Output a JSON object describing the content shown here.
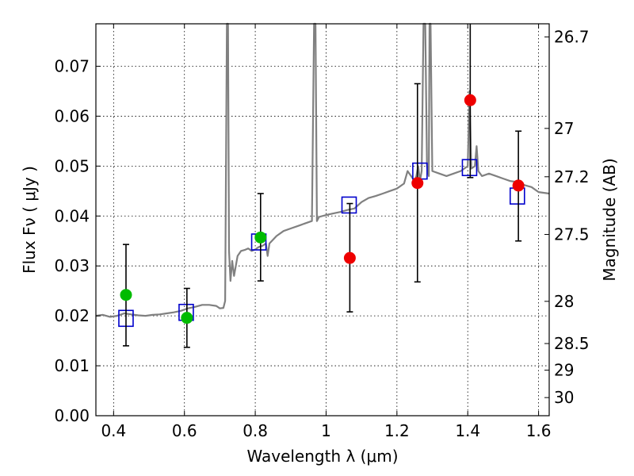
{
  "chart_data": {
    "type": "scatter",
    "xlabel": "Wavelength  λ (μm)",
    "ylabel": "Flux  Fν  ( μJy )",
    "y2label": "Magnitude (AB)",
    "xlim": [
      0.35,
      1.63
    ],
    "ylim": [
      0.0,
      0.0785
    ],
    "grid": true,
    "x_ticks": [
      {
        "value": 0.4,
        "label": "0.4"
      },
      {
        "value": 0.6,
        "label": "0.6"
      },
      {
        "value": 0.8,
        "label": "0.8"
      },
      {
        "value": 1.0,
        "label": "1"
      },
      {
        "value": 1.2,
        "label": "1.2"
      },
      {
        "value": 1.4,
        "label": "1.4"
      },
      {
        "value": 1.6,
        "label": "1.6"
      }
    ],
    "y_ticks": [
      {
        "value": 0.0,
        "label": "0.00"
      },
      {
        "value": 0.01,
        "label": "0.01"
      },
      {
        "value": 0.02,
        "label": "0.02"
      },
      {
        "value": 0.03,
        "label": "0.03"
      },
      {
        "value": 0.04,
        "label": "0.04"
      },
      {
        "value": 0.05,
        "label": "0.05"
      },
      {
        "value": 0.06,
        "label": "0.06"
      },
      {
        "value": 0.07,
        "label": "0.07"
      }
    ],
    "y2_ticks": [
      {
        "mag": 26.7,
        "label": "26.7"
      },
      {
        "mag": 27.0,
        "label": "27"
      },
      {
        "mag": 27.2,
        "label": "27.2"
      },
      {
        "mag": 27.5,
        "label": "27.5"
      },
      {
        "mag": 28.0,
        "label": "28"
      },
      {
        "mag": 28.5,
        "label": "28.5"
      },
      {
        "mag": 29.0,
        "label": "29"
      },
      {
        "mag": 30.0,
        "label": "30"
      }
    ],
    "colors": {
      "spectrum": "#808080",
      "model": "#0000cc",
      "green": "#00bb00",
      "red": "#ee0000",
      "errorbar": "#000000",
      "grid": "#000000"
    },
    "spectrum": [
      [
        0.35,
        0.02
      ],
      [
        0.37,
        0.0202
      ],
      [
        0.39,
        0.0198
      ],
      [
        0.41,
        0.02
      ],
      [
        0.43,
        0.0205
      ],
      [
        0.45,
        0.0203
      ],
      [
        0.47,
        0.0201
      ],
      [
        0.49,
        0.02
      ],
      [
        0.51,
        0.0202
      ],
      [
        0.53,
        0.0203
      ],
      [
        0.55,
        0.0205
      ],
      [
        0.57,
        0.0207
      ],
      [
        0.59,
        0.021
      ],
      [
        0.61,
        0.0215
      ],
      [
        0.63,
        0.0218
      ],
      [
        0.65,
        0.0222
      ],
      [
        0.67,
        0.0222
      ],
      [
        0.69,
        0.022
      ],
      [
        0.7,
        0.0215
      ],
      [
        0.71,
        0.0216
      ],
      [
        0.715,
        0.023
      ],
      [
        0.72,
        0.08
      ],
      [
        0.723,
        0.08
      ],
      [
        0.726,
        0.033
      ],
      [
        0.73,
        0.027
      ],
      [
        0.735,
        0.031
      ],
      [
        0.74,
        0.028
      ],
      [
        0.75,
        0.032
      ],
      [
        0.76,
        0.033
      ],
      [
        0.77,
        0.0332
      ],
      [
        0.78,
        0.0335
      ],
      [
        0.79,
        0.033
      ],
      [
        0.8,
        0.0333
      ],
      [
        0.81,
        0.0338
      ],
      [
        0.82,
        0.034
      ],
      [
        0.83,
        0.0345
      ],
      [
        0.835,
        0.032
      ],
      [
        0.84,
        0.0345
      ],
      [
        0.86,
        0.036
      ],
      [
        0.88,
        0.037
      ],
      [
        0.9,
        0.0375
      ],
      [
        0.92,
        0.038
      ],
      [
        0.94,
        0.0385
      ],
      [
        0.96,
        0.039
      ],
      [
        0.966,
        0.08
      ],
      [
        0.97,
        0.08
      ],
      [
        0.974,
        0.039
      ],
      [
        0.98,
        0.0398
      ],
      [
        1.0,
        0.0402
      ],
      [
        1.02,
        0.0405
      ],
      [
        1.04,
        0.0408
      ],
      [
        1.06,
        0.0412
      ],
      [
        1.08,
        0.0415
      ],
      [
        1.1,
        0.0428
      ],
      [
        1.12,
        0.0436
      ],
      [
        1.14,
        0.044
      ],
      [
        1.16,
        0.0445
      ],
      [
        1.18,
        0.045
      ],
      [
        1.2,
        0.0455
      ],
      [
        1.22,
        0.0465
      ],
      [
        1.23,
        0.049
      ],
      [
        1.24,
        0.048
      ],
      [
        1.25,
        0.047
      ],
      [
        1.255,
        0.048
      ],
      [
        1.26,
        0.05
      ],
      [
        1.265,
        0.047
      ],
      [
        1.27,
        0.049
      ],
      [
        1.275,
        0.08
      ],
      [
        1.28,
        0.08
      ],
      [
        1.285,
        0.05
      ],
      [
        1.29,
        0.048
      ],
      [
        1.292,
        0.08
      ],
      [
        1.295,
        0.08
      ],
      [
        1.3,
        0.049
      ],
      [
        1.32,
        0.0485
      ],
      [
        1.34,
        0.048
      ],
      [
        1.36,
        0.0485
      ],
      [
        1.38,
        0.049
      ],
      [
        1.39,
        0.0495
      ],
      [
        1.4,
        0.05
      ],
      [
        1.405,
        0.065
      ],
      [
        1.41,
        0.0495
      ],
      [
        1.42,
        0.05
      ],
      [
        1.425,
        0.054
      ],
      [
        1.43,
        0.049
      ],
      [
        1.44,
        0.048
      ],
      [
        1.46,
        0.0485
      ],
      [
        1.48,
        0.048
      ],
      [
        1.5,
        0.0475
      ],
      [
        1.52,
        0.047
      ],
      [
        1.54,
        0.0468
      ],
      [
        1.56,
        0.0462
      ],
      [
        1.58,
        0.0458
      ],
      [
        1.6,
        0.0448
      ],
      [
        1.63,
        0.0445
      ]
    ],
    "model_points": [
      {
        "x": 0.435,
        "y": 0.0195
      },
      {
        "x": 0.605,
        "y": 0.0207
      },
      {
        "x": 0.81,
        "y": 0.0348
      },
      {
        "x": 1.065,
        "y": 0.0422
      },
      {
        "x": 1.265,
        "y": 0.049
      },
      {
        "x": 1.405,
        "y": 0.0497
      },
      {
        "x": 1.54,
        "y": 0.044
      }
    ],
    "measured_points": [
      {
        "x": 0.435,
        "y": 0.0242,
        "ylow": 0.014,
        "yhigh": 0.0343,
        "color": "green"
      },
      {
        "x": 0.607,
        "y": 0.0196,
        "ylow": 0.0137,
        "yhigh": 0.0255,
        "color": "green"
      },
      {
        "x": 0.815,
        "y": 0.0357,
        "ylow": 0.027,
        "yhigh": 0.0445,
        "color": "green"
      },
      {
        "x": 1.067,
        "y": 0.0316,
        "ylow": 0.0208,
        "yhigh": 0.0425,
        "color": "red"
      },
      {
        "x": 1.258,
        "y": 0.0466,
        "ylow": 0.0268,
        "yhigh": 0.0665,
        "color": "red"
      },
      {
        "x": 1.407,
        "y": 0.0632,
        "ylow": 0.0477,
        "yhigh": 0.08,
        "color": "red"
      },
      {
        "x": 1.543,
        "y": 0.0461,
        "ylow": 0.035,
        "yhigh": 0.057,
        "color": "red"
      }
    ]
  }
}
